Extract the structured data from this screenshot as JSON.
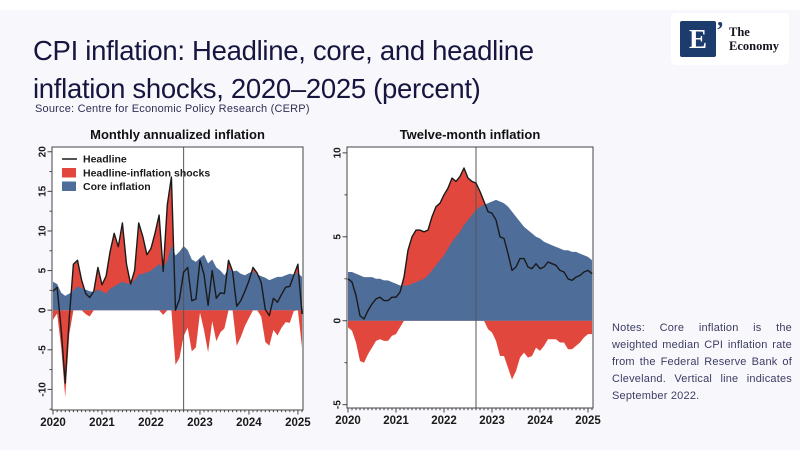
{
  "header": {
    "title": "CPI inflation: Headline, core, and headline inflation shocks, 2020–2025 (percent)",
    "source": "Source: Centre for Economic Policy Research (CERP)"
  },
  "logo": {
    "mark": "E",
    "apostrophe": "’",
    "name_line1": "The",
    "name_line2": "Economy"
  },
  "notes": "Notes: Core inflation is the weighted median CPI inflation rate from the Federal Reserve Bank of Cleveland. Vertical line indicates September 2022.",
  "colors": {
    "background": "#f8f8fc",
    "plot_bg": "#ffffff",
    "headline": "#1a1a1a",
    "shocks": "#e2473d",
    "core": "#4e6d99",
    "frame": "#444444",
    "vline": "#555555",
    "title_text": "#15153f",
    "notes_text": "#3c3c63",
    "logo_navy": "#1d3c6e"
  },
  "chart_data": [
    {
      "type": "area",
      "title": "Monthly annualized inflation",
      "x_unit": "month",
      "x_start": "2020-01",
      "x_end": "2025-02",
      "x_ticks": [
        "2020",
        "2021",
        "2022",
        "2023",
        "2024",
        "2025"
      ],
      "y_ticks": [
        -10,
        -5,
        0,
        5,
        10,
        15,
        20
      ],
      "ylim": [
        -12.6,
        20.6
      ],
      "vline": "2022-09",
      "vline_month_index": 32,
      "legend": [
        "Headline",
        "Headline-inflation shocks",
        "Core inflation"
      ],
      "series": [
        {
          "name": "Headline",
          "values": [
            2.4,
            2.9,
            -2.5,
            -9.2,
            -0.9,
            5.8,
            6.3,
            3.8,
            2.1,
            1.6,
            2.4,
            5.4,
            3.2,
            4.3,
            7.4,
            9.7,
            8.0,
            11.0,
            5.8,
            3.3,
            5.0,
            11.0,
            9.3,
            7.0,
            7.8,
            9.7,
            12.0,
            4.9,
            13.3,
            16.8,
            0.0,
            1.4,
            4.8,
            5.4,
            1.2,
            1.4,
            6.3,
            4.5,
            0.6,
            5.0,
            1.5,
            2.2,
            2.1,
            6.3,
            4.9,
            0.5,
            1.2,
            2.4,
            3.7,
            5.4,
            4.7,
            3.5,
            0.1,
            -0.7,
            1.5,
            1.0,
            2.0,
            2.9,
            3.0,
            4.4,
            5.8,
            -0.5
          ]
        },
        {
          "name": "Core inflation",
          "values": [
            3.6,
            3.3,
            2.2,
            1.8,
            2.1,
            2.5,
            3.0,
            2.8,
            2.6,
            2.4,
            2.3,
            2.6,
            2.4,
            2.1,
            2.7,
            3.0,
            3.3,
            3.6,
            3.4,
            3.3,
            3.8,
            4.5,
            4.6,
            4.8,
            5.0,
            5.4,
            5.8,
            5.5,
            6.2,
            8.2,
            6.9,
            7.4,
            8.1,
            7.6,
            6.4,
            6.1,
            6.6,
            7.0,
            5.9,
            6.4,
            5.4,
            5.0,
            4.4,
            5.3,
            4.9,
            5.0,
            4.6,
            4.4,
            4.7,
            4.9,
            4.5,
            4.3,
            4.1,
            3.8,
            4.0,
            4.2,
            4.2,
            4.4,
            4.6,
            4.5,
            4.7,
            4.2
          ]
        }
      ]
    },
    {
      "type": "area",
      "title": "Twelve-month inflation",
      "x_unit": "month",
      "x_start": "2020-01",
      "x_end": "2025-02",
      "x_ticks": [
        "2020",
        "2021",
        "2022",
        "2023",
        "2024",
        "2025"
      ],
      "y_ticks": [
        -5,
        0,
        5,
        10
      ],
      "ylim": [
        -5.2,
        10.35
      ],
      "vline": "2022-09",
      "vline_month_index": 32,
      "legend": null,
      "series": [
        {
          "name": "Headline",
          "values": [
            2.5,
            2.3,
            1.5,
            0.3,
            0.1,
            0.6,
            1.0,
            1.3,
            1.4,
            1.2,
            1.2,
            1.4,
            1.4,
            1.7,
            2.6,
            4.2,
            5.0,
            5.4,
            5.4,
            5.3,
            5.4,
            6.2,
            6.8,
            7.0,
            7.5,
            7.9,
            8.5,
            8.3,
            8.6,
            9.1,
            8.5,
            8.3,
            8.2,
            7.7,
            7.1,
            6.5,
            6.4,
            6.0,
            5.0,
            4.9,
            4.0,
            3.0,
            3.2,
            3.7,
            3.7,
            3.2,
            3.1,
            3.4,
            3.1,
            3.2,
            3.5,
            3.4,
            3.3,
            3.0,
            2.9,
            2.5,
            2.4,
            2.6,
            2.7,
            2.9,
            3.0,
            2.8
          ]
        },
        {
          "name": "Core inflation",
          "values": [
            2.9,
            2.9,
            2.8,
            2.7,
            2.6,
            2.6,
            2.6,
            2.5,
            2.5,
            2.4,
            2.4,
            2.3,
            2.2,
            2.1,
            2.1,
            2.1,
            2.2,
            2.3,
            2.4,
            2.5,
            2.7,
            3.0,
            3.3,
            3.6,
            3.9,
            4.3,
            4.7,
            5.0,
            5.3,
            5.7,
            6.0,
            6.3,
            6.6,
            6.8,
            6.9,
            7.0,
            7.1,
            7.2,
            7.1,
            7.0,
            6.8,
            6.5,
            6.2,
            5.9,
            5.6,
            5.4,
            5.2,
            5.0,
            4.9,
            4.7,
            4.6,
            4.5,
            4.4,
            4.3,
            4.2,
            4.2,
            4.1,
            4.1,
            4.0,
            3.9,
            3.8,
            3.6
          ]
        }
      ]
    }
  ]
}
